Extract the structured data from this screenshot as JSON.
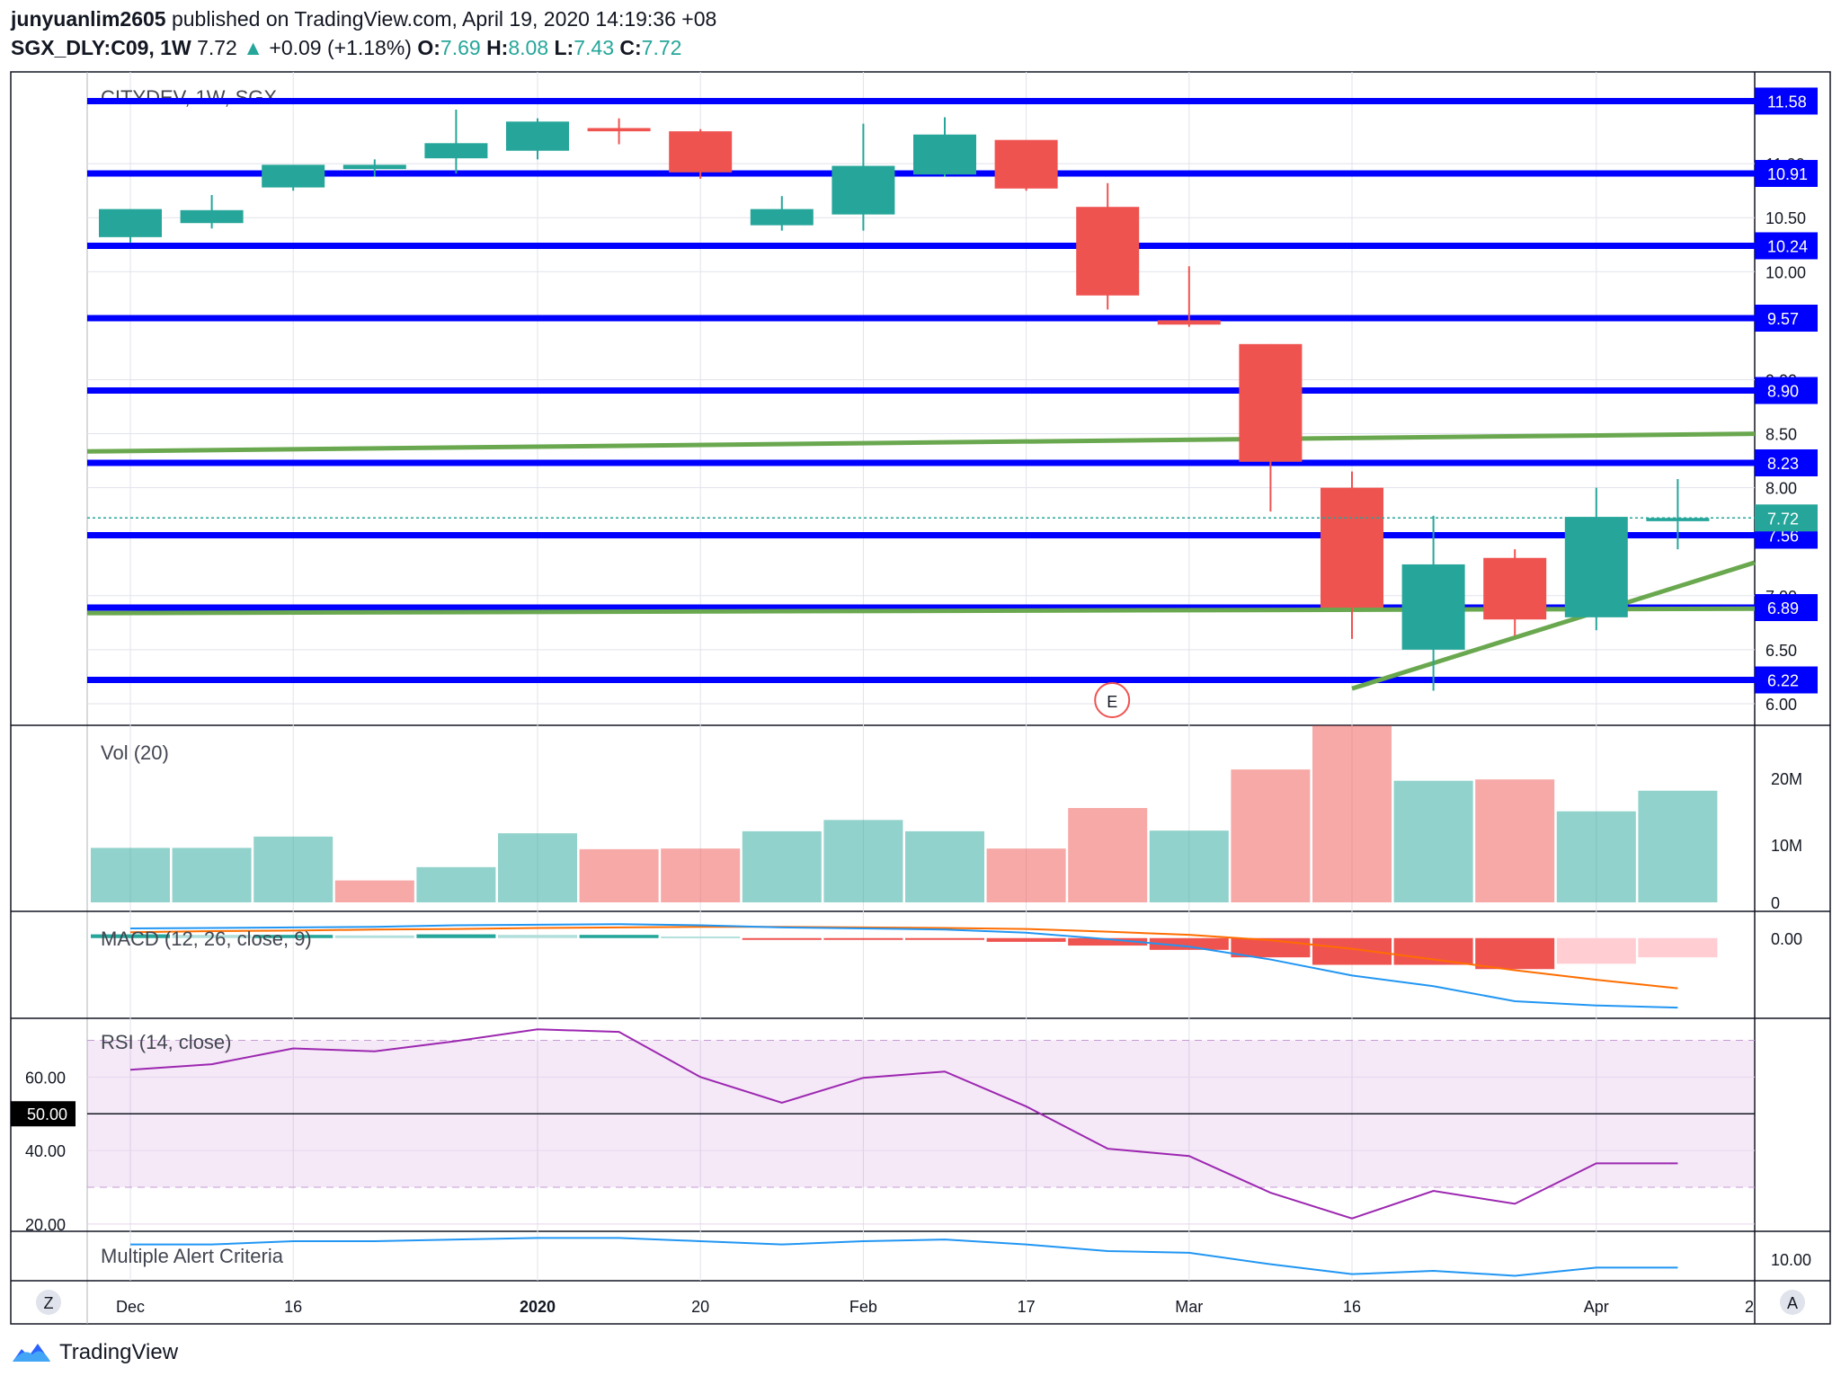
{
  "header": {
    "user": "junyuanlim2605",
    "published": "published on TradingView.com, April 19, 2020 14:19:36 +08",
    "symbol": "SGX_DLY:C09, 1W",
    "last": "7.72",
    "change": "+0.09 (+1.18%)",
    "o_label": "O:",
    "o": "7.69",
    "h_label": "H:",
    "h": "8.08",
    "l_label": "L:",
    "l": "7.43",
    "c_label": "C:",
    "c": "7.72"
  },
  "footer": {
    "brand": "TradingView"
  },
  "watermark": "CITYDEV, 1W, SGX",
  "colors": {
    "up": "#26a69a",
    "down": "#ef5350",
    "level": "#0000ff",
    "trend": "#6aa84f",
    "rsi": "#9c27b0",
    "macd": "#2196f3",
    "signal": "#ff6d00"
  },
  "chart_data": [
    {
      "type": "candlestick",
      "title": "CITYDEV, 1W, SGX",
      "x": [
        "Dec 2",
        "Dec 9",
        "Dec 16",
        "Dec 23",
        "Dec 30",
        "Jan 6",
        "Jan 13",
        "Jan 20",
        "Jan 27",
        "Feb 3",
        "Feb 10",
        "Feb 17",
        "Feb 24",
        "Mar 2",
        "Mar 9",
        "Mar 16",
        "Mar 23",
        "Mar 30",
        "Apr 6",
        "Apr 13"
      ],
      "open": [
        10.32,
        10.45,
        10.78,
        10.95,
        11.05,
        11.12,
        11.33,
        11.3,
        10.43,
        10.53,
        10.9,
        11.22,
        10.6,
        9.55,
        9.33,
        8.0,
        6.5,
        7.35,
        6.8,
        7.69
      ],
      "high": [
        10.53,
        10.71,
        10.93,
        11.04,
        11.5,
        11.42,
        11.42,
        11.32,
        10.7,
        11.37,
        11.43,
        11.2,
        10.82,
        10.05,
        9.33,
        8.15,
        7.74,
        7.43,
        8.0,
        8.08
      ],
      "low": [
        10.27,
        10.4,
        10.75,
        10.88,
        10.91,
        11.04,
        11.18,
        10.86,
        10.38,
        10.38,
        10.88,
        10.75,
        9.65,
        9.49,
        7.78,
        6.6,
        6.12,
        6.63,
        6.68,
        7.43
      ],
      "close": [
        10.58,
        10.57,
        10.99,
        10.99,
        11.19,
        11.39,
        11.3,
        10.92,
        10.58,
        10.98,
        11.27,
        10.77,
        9.78,
        9.51,
        8.24,
        6.89,
        7.29,
        6.78,
        7.73,
        7.72
      ],
      "yaxis_ticks": [
        "6.00",
        "6.50",
        "7.00",
        "8.00",
        "8.50",
        "9.00",
        "10.00",
        "10.50",
        "11.00"
      ],
      "ylim": [
        5.8,
        11.85
      ],
      "levels": [
        "11.58",
        "10.91",
        "10.24",
        "9.57",
        "8.90",
        "8.23",
        "7.56",
        "6.89",
        "6.22"
      ],
      "last_price_label": "7.72",
      "trendlines": [
        {
          "from": [
            "Dec 2",
            8.34
          ],
          "to": [
            "Apr 20",
            8.5
          ]
        },
        {
          "from": [
            "Dec 2",
            6.84
          ],
          "to": [
            "Apr 20",
            6.88
          ]
        },
        {
          "from": [
            "Mar 16",
            6.14
          ],
          "to": [
            "Apr 20",
            7.32
          ]
        }
      ],
      "event_marker": {
        "label": "E",
        "x": "Feb 24"
      }
    },
    {
      "type": "bar",
      "title": "Vol (20)",
      "values": [
        8.2,
        8.2,
        9.9,
        3.3,
        5.3,
        10.4,
        8.0,
        8.1,
        10.7,
        12.4,
        10.7,
        8.1,
        14.2,
        10.8,
        20.0,
        26.6,
        18.3,
        18.5,
        13.7,
        16.8
      ],
      "direction": [
        "up",
        "up",
        "up",
        "down",
        "up",
        "up",
        "down",
        "down",
        "up",
        "up",
        "up",
        "down",
        "down",
        "up",
        "down",
        "down",
        "up",
        "down",
        "up",
        "up"
      ],
      "yaxis_ticks": [
        "0",
        "10M",
        "20M"
      ],
      "ylim": [
        0,
        28
      ]
    },
    {
      "type": "line",
      "title": "MACD (12, 26, close, 9)",
      "macd": [
        0.18,
        0.19,
        0.2,
        0.21,
        0.24,
        0.25,
        0.26,
        0.24,
        0.2,
        0.18,
        0.16,
        0.1,
        -0.02,
        -0.16,
        -0.4,
        -0.7,
        -0.9,
        -1.18,
        -1.26,
        -1.3
      ],
      "signal": [
        0.11,
        0.13,
        0.14,
        0.16,
        0.17,
        0.19,
        0.2,
        0.21,
        0.21,
        0.2,
        0.19,
        0.17,
        0.12,
        0.06,
        -0.04,
        -0.2,
        -0.4,
        -0.6,
        -0.78,
        -0.94
      ],
      "histogram": [
        0.07,
        0.06,
        0.06,
        0.05,
        0.07,
        0.06,
        0.06,
        0.03,
        -0.01,
        -0.02,
        -0.03,
        -0.07,
        -0.14,
        -0.22,
        -0.36,
        -0.5,
        -0.5,
        -0.58,
        -0.48,
        -0.36
      ],
      "yaxis_ticks": [
        "0.00"
      ],
      "ylim": [
        -1.5,
        0.5
      ]
    },
    {
      "type": "line",
      "title": "RSI (14, close)",
      "values": [
        62.0,
        63.5,
        67.8,
        67.0,
        69.8,
        73.0,
        72.3,
        60.0,
        53.0,
        59.8,
        61.5,
        52.0,
        40.5,
        38.5,
        28.5,
        21.5,
        29.0,
        25.5,
        36.5,
        36.5
      ],
      "yaxis_ticks": [
        "20.00",
        "40.00",
        "60.00"
      ],
      "highlight_tick": "50.00",
      "bands": [
        30,
        70
      ],
      "ylim": [
        18,
        76
      ]
    },
    {
      "type": "line",
      "title": "Multiple Alert Criteria",
      "values": [
        11.0,
        11.0,
        11.2,
        11.2,
        11.3,
        11.4,
        11.4,
        11.2,
        11.0,
        11.2,
        11.3,
        11.0,
        10.6,
        10.5,
        9.8,
        9.2,
        9.4,
        9.1,
        9.6,
        9.6
      ],
      "yaxis_ticks": [
        "10.00"
      ],
      "ylim": [
        8.8,
        11.8
      ]
    }
  ],
  "time_axis": {
    "labels": [
      {
        "text": "Dec",
        "i": 0,
        "bold": false
      },
      {
        "text": "16",
        "i": 2,
        "bold": false
      },
      {
        "text": "2020",
        "i": 5,
        "bold": true
      },
      {
        "text": "20",
        "i": 7,
        "bold": false
      },
      {
        "text": "Feb",
        "i": 9,
        "bold": false
      },
      {
        "text": "17",
        "i": 11,
        "bold": false
      },
      {
        "text": "Mar",
        "i": 13,
        "bold": false
      },
      {
        "text": "16",
        "i": 15,
        "bold": false
      },
      {
        "text": "Apr",
        "i": 18,
        "bold": false
      },
      {
        "text": "2",
        "i": 20,
        "bold": false
      }
    ],
    "left_button": "Z",
    "right_button": "A"
  }
}
